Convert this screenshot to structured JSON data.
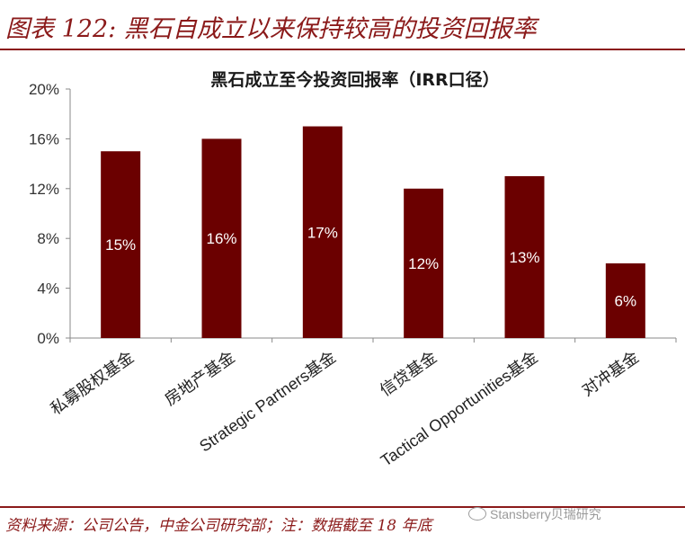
{
  "figure": {
    "title": "图表 122: 黑石自成立以来保持较高的投资回报率",
    "source": "资料来源：公司公告，中金公司研究部；注：数据截至 18 年底",
    "watermark": "Stansberry贝瑞研究"
  },
  "colors": {
    "accent": "#8b1a1a",
    "bar": "#6b0000",
    "bar_label": "#ffffff",
    "text": "#333333"
  },
  "chart_data": {
    "type": "bar",
    "title": "黑石成立至今投资回报率（IRR口径）",
    "categories": [
      "私募股权基金",
      "房地产基金",
      "Strategic Partners基金",
      "信贷基金",
      "Tactical Opportunities基金",
      "对冲基金"
    ],
    "values": [
      15,
      16,
      17,
      12,
      13,
      6
    ],
    "data_labels": [
      "15%",
      "16%",
      "17%",
      "12%",
      "13%",
      "6%"
    ],
    "ylim": [
      0,
      20
    ],
    "yticks": [
      0,
      4,
      8,
      12,
      16,
      20
    ],
    "ytick_labels": [
      "0%",
      "4%",
      "8%",
      "12%",
      "16%",
      "20%"
    ],
    "grid": false,
    "legend": "none"
  }
}
